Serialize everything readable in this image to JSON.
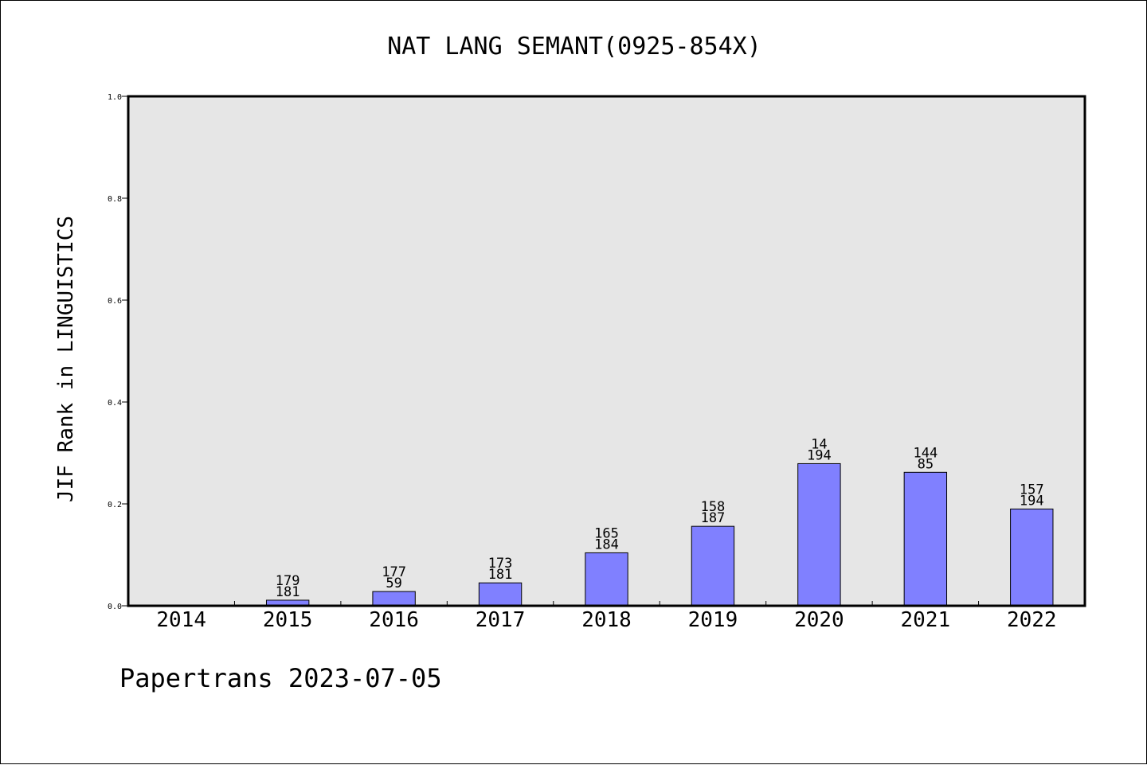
{
  "footer_text": "Papertrans 2023-07-05",
  "colors": {
    "bar_fill": "#8080ff",
    "plot_background": "#e6e6e6",
    "axis": "#000000"
  },
  "chart_data": {
    "type": "bar",
    "title": "NAT LANG SEMANT(0925-854X)",
    "xlabel": "",
    "ylabel": "JIF Rank in LINGUISTICS",
    "ylim": [
      0,
      1.0
    ],
    "yticks": [
      "0.0",
      "0.2",
      "0.4",
      "0.6",
      "0.8",
      "1.0"
    ],
    "grid": false,
    "categories": [
      "2014",
      "2015",
      "2016",
      "2017",
      "2018",
      "2019",
      "2020",
      "2021",
      "2022"
    ],
    "values": [
      null,
      0.011,
      0.028,
      0.045,
      0.104,
      0.156,
      0.279,
      0.262,
      0.19
    ],
    "bar_labels": [
      null,
      [
        "179",
        "181"
      ],
      [
        "177",
        "59"
      ],
      [
        "173",
        "181"
      ],
      [
        "165",
        "184"
      ],
      [
        "158",
        "187"
      ],
      [
        "14",
        "194"
      ],
      [
        "144",
        "85"
      ],
      [
        "157",
        "194"
      ]
    ]
  }
}
